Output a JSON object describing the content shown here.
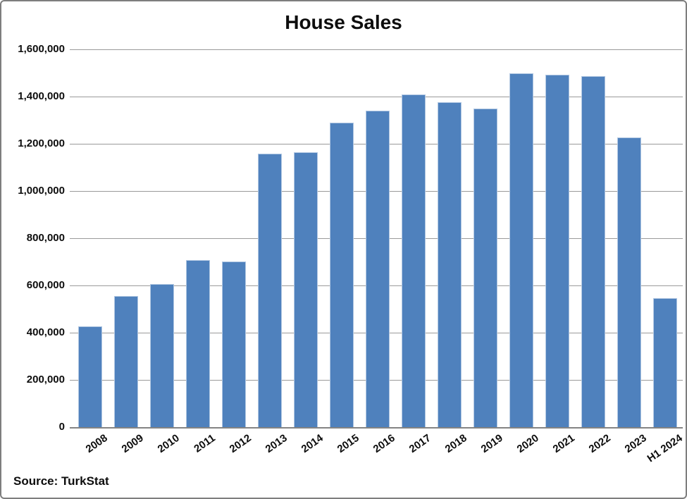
{
  "chart_data": {
    "type": "bar",
    "title": "House Sales",
    "source_note": "Source: TurkStat",
    "categories": [
      "2008",
      "2009",
      "2010",
      "2011",
      "2012",
      "2013",
      "2014",
      "2015",
      "2016",
      "2017",
      "2018",
      "2019",
      "2020",
      "2021",
      "2022",
      "2023",
      "H1 2024"
    ],
    "values": [
      427000,
      555000,
      607000,
      708000,
      702000,
      1157000,
      1165000,
      1289000,
      1341000,
      1409000,
      1375000,
      1349000,
      1499000,
      1492000,
      1486000,
      1226000,
      545000
    ],
    "xlabel": "",
    "ylabel": "",
    "ylim": [
      0,
      1600000
    ],
    "ytick_step": 200000,
    "ytick_labels": [
      "1,600,000",
      "1,400,000",
      "1,200,000",
      "1,000,000",
      "800,000",
      "600,000",
      "400,000",
      "200,000",
      "0"
    ],
    "grid": "horizontal",
    "legend": "none",
    "bar_color": "#4f81bd",
    "bar_border_color": "#b1c7e2",
    "gridline_color": "#9a9a9a",
    "text_color": "#0d0d0d"
  }
}
